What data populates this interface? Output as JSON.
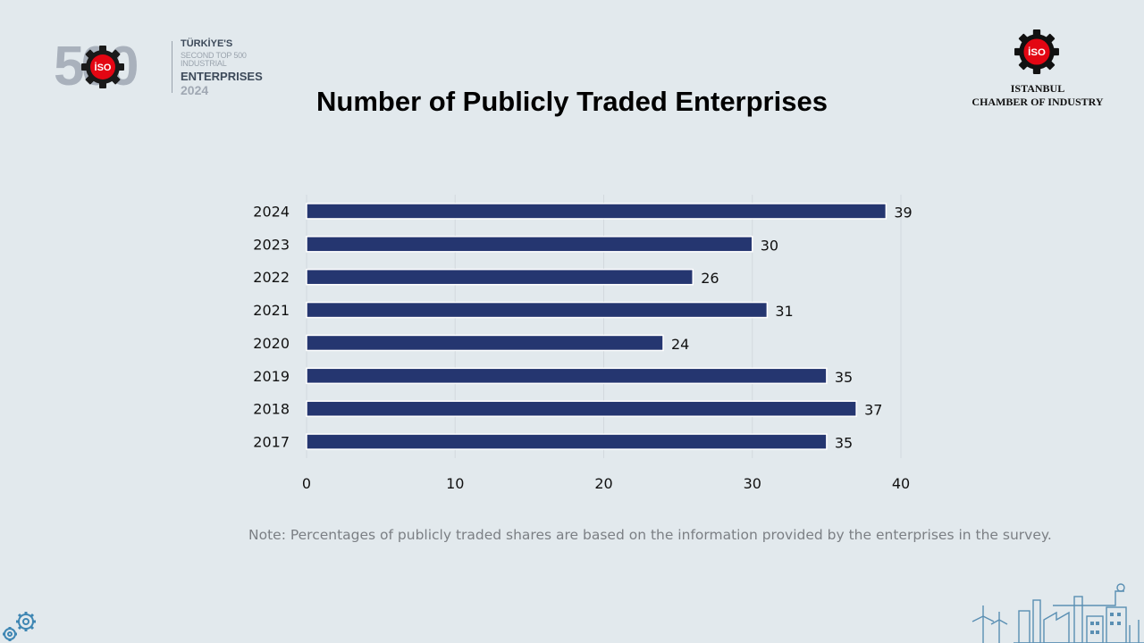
{
  "logos": {
    "left": {
      "big_number": "500",
      "badge": "İSO",
      "line1": "TÜRKİYE'S",
      "line2": "SECOND TOP 500 INDUSTRIAL",
      "line3": "ENTERPRISES",
      "line4": "2024"
    },
    "right": {
      "badge": "İSO",
      "name_line1": "ISTANBUL",
      "name_line2": "CHAMBER OF INDUSTRY"
    }
  },
  "note": "Note: Percentages of publicly traded shares are based on the information provided by the enterprises in the survey.",
  "colors": {
    "bar": "#253670",
    "grid": "#d3d9de",
    "background": "#e2e9ed",
    "brand_red": "#e30613"
  },
  "chart_data": {
    "type": "bar",
    "orientation": "horizontal",
    "title": "Number of Publicly Traded Enterprises",
    "categories": [
      "2024",
      "2023",
      "2022",
      "2021",
      "2020",
      "2019",
      "2018",
      "2017"
    ],
    "values": [
      39,
      30,
      26,
      31,
      24,
      35,
      37,
      35
    ],
    "xlim": [
      0,
      40
    ],
    "xticks": [
      0,
      10,
      20,
      30,
      40
    ],
    "grid": "vertical",
    "data_labels": true
  }
}
